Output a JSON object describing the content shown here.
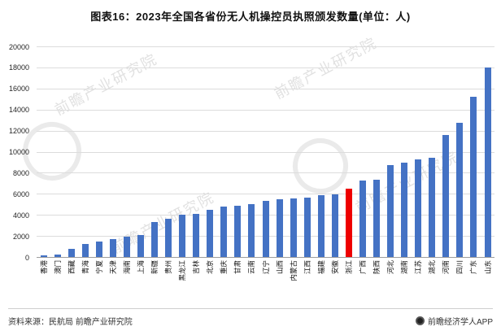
{
  "title": "图表16：2023年全国各省份无人机操控员执照颁发数量(单位：人)",
  "footer": {
    "source": "资料来源：民航局 前瞻产业研究院",
    "brand": "前瞻经济学人APP"
  },
  "watermark_text": "前瞻产业研究院",
  "colors": {
    "bar": "#4472C4",
    "highlight": "#EE0000",
    "grid": "#DCDCDC",
    "axis": "#9E9E9E"
  },
  "chart_data": {
    "type": "bar",
    "title": "图表16：2023年全国各省份无人机操控员执照颁发数量(单位：人)",
    "unit": "人",
    "categories": [
      "香港",
      "澳门",
      "西藏",
      "青海",
      "宁夏",
      "天津",
      "海南",
      "上海",
      "新疆",
      "贵州",
      "黑龙江",
      "吉林",
      "北京",
      "重庆",
      "甘肃",
      "云南",
      "辽宁",
      "山西",
      "内蒙古",
      "江西",
      "福建",
      "安徽",
      "浙江",
      "广西",
      "陕西",
      "河北",
      "湖南",
      "江苏",
      "湖北",
      "河南",
      "四川",
      "广东",
      "山东"
    ],
    "values": [
      150,
      250,
      800,
      1250,
      1450,
      1700,
      1900,
      2100,
      3350,
      3650,
      4050,
      4100,
      4450,
      4800,
      4850,
      5000,
      5300,
      5500,
      5550,
      5600,
      5900,
      5950,
      6450,
      7250,
      7300,
      8750,
      8950,
      9250,
      9450,
      11600,
      12750,
      15250,
      18000
    ],
    "highlight_category": "浙江",
    "ylim": [
      0,
      20000
    ],
    "ytick_step": 2000,
    "ytick_labels": [
      "0",
      "2000",
      "4000",
      "6000",
      "8000",
      "10000",
      "12000",
      "14000",
      "16000",
      "18000",
      "20000"
    ],
    "grid": true,
    "legend": "none",
    "xlabel_rotation": 90
  }
}
